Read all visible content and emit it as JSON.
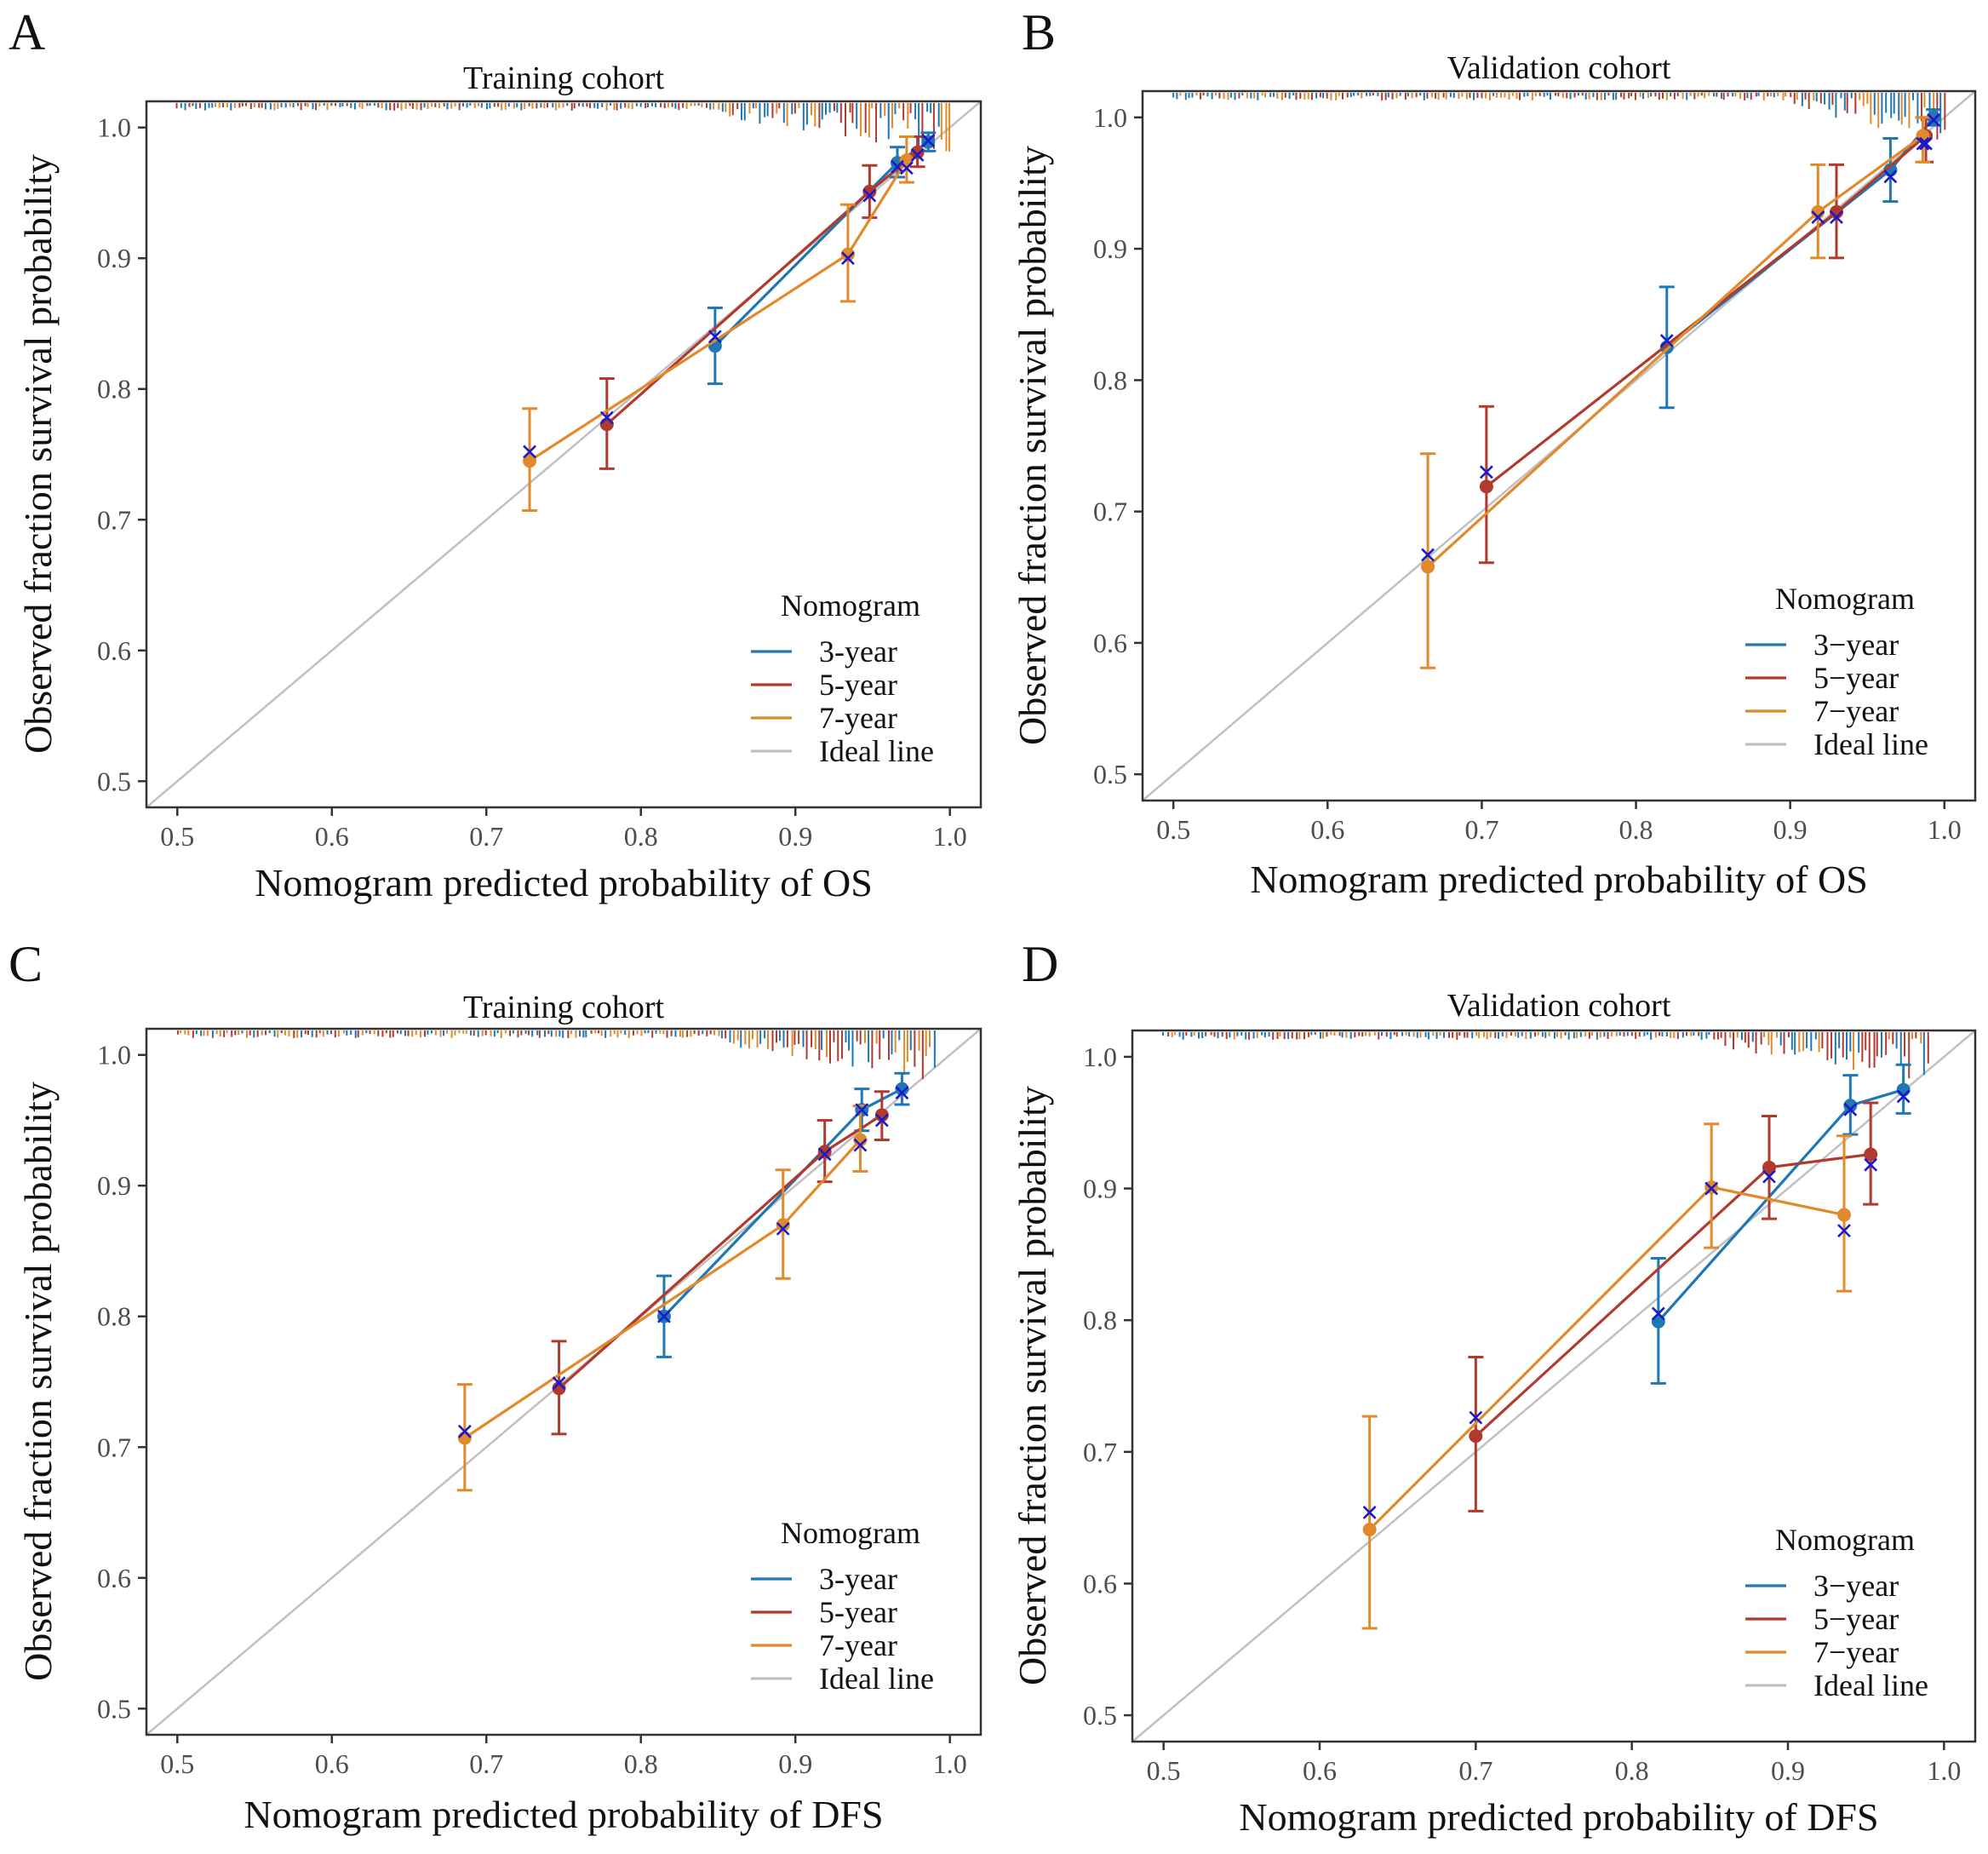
{
  "figure": {
    "background": "#ffffff"
  },
  "colors": {
    "three_year": "#1f77b4",
    "five_year": "#b03a2e",
    "seven_year": "#e08a2c",
    "ideal": "#c0c0c0",
    "observed_marker": "#1a1acc",
    "axis": "#333333"
  },
  "legend_labels": [
    "3-year",
    "5-year",
    "7-year",
    "Ideal line"
  ],
  "chart_data": [
    {
      "panel": "A",
      "type": "line",
      "title": "Training cohort",
      "xlabel": "Nomogram predicted probability of OS",
      "ylabel": "Observed fraction survival probability",
      "xlim": [
        0.48,
        1.02
      ],
      "ylim": [
        0.48,
        1.02
      ],
      "xticks": [
        0.5,
        0.6,
        0.7,
        0.8,
        0.9,
        1.0
      ],
      "yticks": [
        0.5,
        0.6,
        0.7,
        0.8,
        0.9,
        1.0
      ],
      "tick_labels": [
        "0.5",
        "0.6",
        "0.7",
        "0.8",
        "0.9",
        "1.0"
      ],
      "legend_title": "Nomogram",
      "legend_items": [
        "3-year",
        "5-year",
        "7-year",
        "Ideal line"
      ],
      "legend_position": "bottom-right",
      "series": [
        {
          "name": "3-year",
          "points": [
            {
              "x": 0.848,
              "y": 0.833,
              "lo": 0.804,
              "hi": 0.862,
              "obs": 0.84
            },
            {
              "x": 0.966,
              "y": 0.973,
              "lo": 0.962,
              "hi": 0.985,
              "obs": 0.97
            },
            {
              "x": 0.986,
              "y": 0.989,
              "lo": 0.982,
              "hi": 0.996,
              "obs": 0.99
            }
          ]
        },
        {
          "name": "5-year",
          "points": [
            {
              "x": 0.778,
              "y": 0.773,
              "lo": 0.739,
              "hi": 0.808,
              "obs": 0.778
            },
            {
              "x": 0.948,
              "y": 0.951,
              "lo": 0.931,
              "hi": 0.971,
              "obs": 0.948
            },
            {
              "x": 0.979,
              "y": 0.981,
              "lo": 0.97,
              "hi": 0.993,
              "obs": 0.979
            }
          ]
        },
        {
          "name": "7-year",
          "points": [
            {
              "x": 0.728,
              "y": 0.745,
              "lo": 0.707,
              "hi": 0.785,
              "obs": 0.752
            },
            {
              "x": 0.934,
              "y": 0.903,
              "lo": 0.867,
              "hi": 0.941,
              "obs": 0.9
            },
            {
              "x": 0.972,
              "y": 0.975,
              "lo": 0.958,
              "hi": 0.993,
              "obs": 0.969
            }
          ]
        }
      ],
      "rug": {
        "start": 0.5,
        "end": 1.0,
        "dense_from": 0.85
      }
    },
    {
      "panel": "B",
      "type": "line",
      "title": "Validation cohort",
      "xlabel": "Nomogram predicted probability of OS",
      "ylabel": "Observed fraction survival probability",
      "xlim": [
        0.48,
        1.02
      ],
      "ylim": [
        0.48,
        1.02
      ],
      "xticks": [
        0.5,
        0.6,
        0.7,
        0.8,
        0.9,
        1.0
      ],
      "yticks": [
        0.5,
        0.6,
        0.7,
        0.8,
        0.9,
        1.0
      ],
      "tick_labels": [
        "0.5",
        "0.6",
        "0.7",
        "0.8",
        "0.9",
        "1.0"
      ],
      "legend_title": "Nomogram",
      "legend_items": [
        "3−year",
        "5−year",
        "7−year",
        "Ideal line"
      ],
      "legend_position": "bottom-right",
      "series": [
        {
          "name": "3-year",
          "points": [
            {
              "x": 0.82,
              "y": 0.825,
              "lo": 0.779,
              "hi": 0.871,
              "obs": 0.83
            },
            {
              "x": 0.965,
              "y": 0.96,
              "lo": 0.936,
              "hi": 0.984,
              "obs": 0.955
            },
            {
              "x": 0.993,
              "y": 1.0,
              "lo": 0.994,
              "hi": 1.006,
              "obs": 0.998
            }
          ]
        },
        {
          "name": "5-year",
          "points": [
            {
              "x": 0.703,
              "y": 0.719,
              "lo": 0.661,
              "hi": 0.78,
              "obs": 0.73
            },
            {
              "x": 0.93,
              "y": 0.928,
              "lo": 0.893,
              "hi": 0.964,
              "obs": 0.924
            },
            {
              "x": 0.988,
              "y": 0.986,
              "lo": 0.966,
              "hi": 1.0,
              "obs": 0.98
            }
          ]
        },
        {
          "name": "7-year",
          "points": [
            {
              "x": 0.665,
              "y": 0.658,
              "lo": 0.581,
              "hi": 0.744,
              "obs": 0.667
            },
            {
              "x": 0.918,
              "y": 0.928,
              "lo": 0.893,
              "hi": 0.964,
              "obs": 0.924
            },
            {
              "x": 0.986,
              "y": 0.986,
              "lo": 0.966,
              "hi": 1.0,
              "obs": 0.98
            }
          ]
        }
      ],
      "rug": {
        "start": 0.5,
        "end": 1.0,
        "dense_from": 0.9
      }
    },
    {
      "panel": "C",
      "type": "line",
      "title": "Training cohort",
      "xlabel": "Nomogram predicted probability of DFS",
      "ylabel": "Observed fraction survival probability",
      "xlim": [
        0.48,
        1.02
      ],
      "ylim": [
        0.48,
        1.02
      ],
      "xticks": [
        0.5,
        0.6,
        0.7,
        0.8,
        0.9,
        1.0
      ],
      "yticks": [
        0.5,
        0.6,
        0.7,
        0.8,
        0.9,
        1.0
      ],
      "tick_labels": [
        "0.5",
        "0.6",
        "0.7",
        "0.8",
        "0.9",
        "1.0"
      ],
      "legend_title": "Nomogram",
      "legend_items": [
        "3-year",
        "5-year",
        "7-year",
        "Ideal line"
      ],
      "legend_position": "bottom-right",
      "series": [
        {
          "name": "3-year",
          "points": [
            {
              "x": 0.815,
              "y": 0.8,
              "lo": 0.769,
              "hi": 0.831,
              "obs": 0.8
            },
            {
              "x": 0.943,
              "y": 0.958,
              "lo": 0.942,
              "hi": 0.974,
              "obs": 0.958
            },
            {
              "x": 0.969,
              "y": 0.974,
              "lo": 0.962,
              "hi": 0.986,
              "obs": 0.971
            }
          ]
        },
        {
          "name": "5-year",
          "points": [
            {
              "x": 0.747,
              "y": 0.745,
              "lo": 0.71,
              "hi": 0.781,
              "obs": 0.749
            },
            {
              "x": 0.919,
              "y": 0.926,
              "lo": 0.903,
              "hi": 0.95,
              "obs": 0.924
            },
            {
              "x": 0.956,
              "y": 0.954,
              "lo": 0.935,
              "hi": 0.972,
              "obs": 0.95
            }
          ]
        },
        {
          "name": "7-year",
          "points": [
            {
              "x": 0.686,
              "y": 0.707,
              "lo": 0.667,
              "hi": 0.748,
              "obs": 0.712
            },
            {
              "x": 0.892,
              "y": 0.87,
              "lo": 0.829,
              "hi": 0.912,
              "obs": 0.867
            },
            {
              "x": 0.942,
              "y": 0.935,
              "lo": 0.911,
              "hi": 0.961,
              "obs": 0.931
            }
          ]
        }
      ],
      "rug": {
        "start": 0.5,
        "end": 0.99,
        "dense_from": 0.85
      }
    },
    {
      "panel": "D",
      "type": "line",
      "title": "Validation cohort",
      "xlabel": "Nomogram predicted probability of DFS",
      "ylabel": "Observed fraction survival probability",
      "xlim": [
        0.48,
        1.02
      ],
      "ylim": [
        0.48,
        1.02
      ],
      "xticks": [
        0.5,
        0.6,
        0.7,
        0.8,
        0.9,
        1.0
      ],
      "yticks": [
        0.5,
        0.6,
        0.7,
        0.8,
        0.9,
        1.0
      ],
      "tick_labels": [
        "0.5",
        "0.6",
        "0.7",
        "0.8",
        "0.9",
        "1.0"
      ],
      "legend_title": "Nomogram",
      "legend_items": [
        "3−year",
        "5−year",
        "7−year",
        "Ideal line"
      ],
      "legend_position": "bottom-right",
      "series": [
        {
          "name": "3-year",
          "points": [
            {
              "x": 0.817,
              "y": 0.799,
              "lo": 0.752,
              "hi": 0.847,
              "obs": 0.805
            },
            {
              "x": 0.94,
              "y": 0.963,
              "lo": 0.941,
              "hi": 0.986,
              "obs": 0.96
            },
            {
              "x": 0.974,
              "y": 0.975,
              "lo": 0.957,
              "hi": 0.994,
              "obs": 0.97
            }
          ]
        },
        {
          "name": "5-year",
          "points": [
            {
              "x": 0.7,
              "y": 0.712,
              "lo": 0.655,
              "hi": 0.772,
              "obs": 0.726
            },
            {
              "x": 0.888,
              "y": 0.916,
              "lo": 0.877,
              "hi": 0.955,
              "obs": 0.909
            },
            {
              "x": 0.953,
              "y": 0.926,
              "lo": 0.888,
              "hi": 0.965,
              "obs": 0.918
            }
          ]
        },
        {
          "name": "7-year",
          "points": [
            {
              "x": 0.632,
              "y": 0.641,
              "lo": 0.566,
              "hi": 0.727,
              "obs": 0.654
            },
            {
              "x": 0.851,
              "y": 0.901,
              "lo": 0.855,
              "hi": 0.949,
              "obs": 0.9
            },
            {
              "x": 0.936,
              "y": 0.88,
              "lo": 0.822,
              "hi": 0.94,
              "obs": 0.868
            }
          ]
        }
      ],
      "rug": {
        "start": 0.5,
        "end": 0.99,
        "dense_from": 0.85
      }
    }
  ]
}
